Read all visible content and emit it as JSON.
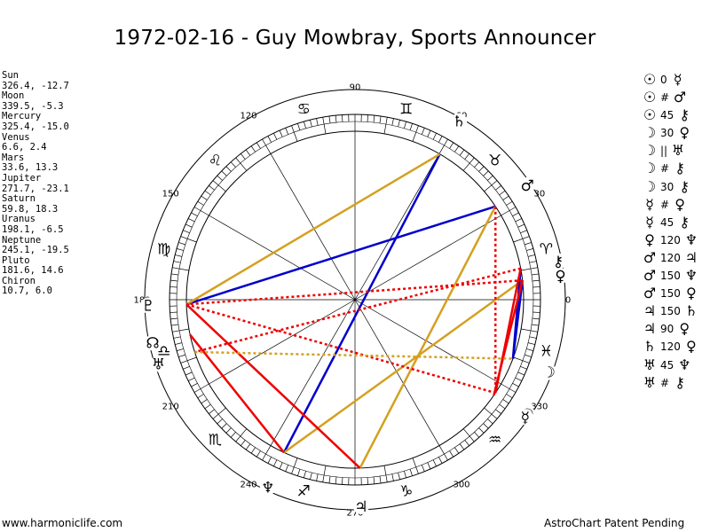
{
  "title": "1972-02-16 - Guy Mowbray, Sports Announcer",
  "planets": [
    {
      "name": "Sun",
      "coords": "326.4, -12.7"
    },
    {
      "name": "Moon",
      "coords": "339.5, -5.3"
    },
    {
      "name": "Mercury",
      "coords": "325.4, -15.0"
    },
    {
      "name": "Venus",
      "coords": "6.6, 2.4"
    },
    {
      "name": "Mars",
      "coords": "33.6, 13.3"
    },
    {
      "name": "Jupiter",
      "coords": "271.7, -23.1"
    },
    {
      "name": "Saturn",
      "coords": "59.8, 18.3"
    },
    {
      "name": "Uranus",
      "coords": "198.1, -6.5"
    },
    {
      "name": "Neptune",
      "coords": "245.1, -19.5"
    },
    {
      "name": "Pluto",
      "coords": "181.6, 14.6"
    },
    {
      "name": "Chiron",
      "coords": "10.7, 6.0"
    }
  ],
  "aspects": [
    {
      "p1": "☉",
      "orb": "0",
      "p2": "☿"
    },
    {
      "p1": "☉",
      "orb": "#",
      "p2": "♂"
    },
    {
      "p1": "☉",
      "orb": "45",
      "p2": "⚷"
    },
    {
      "p1": "☽",
      "orb": "30",
      "p2": "♀"
    },
    {
      "p1": "☽",
      "orb": "||",
      "p2": "♅"
    },
    {
      "p1": "☽",
      "orb": "#",
      "p2": "⚷"
    },
    {
      "p1": "☽",
      "orb": "30",
      "p2": "⚷"
    },
    {
      "p1": "☿",
      "orb": "#",
      "p2": "♀"
    },
    {
      "p1": "☿",
      "orb": "45",
      "p2": "⚷"
    },
    {
      "p1": "♀",
      "orb": "120",
      "p2": "♆"
    },
    {
      "p1": "♂",
      "orb": "120",
      "p2": "♃"
    },
    {
      "p1": "♂",
      "orb": "150",
      "p2": "♆"
    },
    {
      "p1": "♂",
      "orb": "150",
      "p2": "♀"
    },
    {
      "p1": "♃",
      "orb": "150",
      "p2": "♄"
    },
    {
      "p1": "♃",
      "orb": "90",
      "p2": "♀"
    },
    {
      "p1": "♄",
      "orb": "120",
      "p2": "♀"
    },
    {
      "p1": "♅",
      "orb": "45",
      "p2": "♆"
    },
    {
      "p1": "♅",
      "orb": "#",
      "p2": "⚷"
    }
  ],
  "degree_labels": [
    "0",
    "30",
    "60",
    "90",
    "120",
    "150",
    "180",
    "210",
    "240",
    "270",
    "300",
    "330"
  ],
  "zodiac_signs": [
    {
      "symbol": "♈",
      "lon": 15
    },
    {
      "symbol": "♉",
      "lon": 45
    },
    {
      "symbol": "♊",
      "lon": 75
    },
    {
      "symbol": "♋",
      "lon": 105
    },
    {
      "symbol": "♌",
      "lon": 135
    },
    {
      "symbol": "♍",
      "lon": 165
    },
    {
      "symbol": "♎",
      "lon": 195
    },
    {
      "symbol": "♏",
      "lon": 225
    },
    {
      "symbol": "♐",
      "lon": 255
    },
    {
      "symbol": "♑",
      "lon": 285
    },
    {
      "symbol": "♒",
      "lon": 315
    },
    {
      "symbol": "♓",
      "lon": 345
    }
  ],
  "planet_glyphs": [
    {
      "symbol": "☉",
      "lon": 326.4
    },
    {
      "symbol": "☽",
      "lon": 339.5
    },
    {
      "symbol": "☿",
      "lon": 325.4
    },
    {
      "symbol": "♀",
      "lon": 6.6
    },
    {
      "symbol": "♂",
      "lon": 33.6
    },
    {
      "symbol": "♃",
      "lon": 271.7
    },
    {
      "symbol": "♄",
      "lon": 59.8
    },
    {
      "symbol": "♅",
      "lon": 198.1
    },
    {
      "symbol": "♆",
      "lon": 245.1
    },
    {
      "symbol": "♇",
      "lon": 181.6
    },
    {
      "symbol": "⚷",
      "lon": 10.7
    },
    {
      "symbol": "☊",
      "lon": 192.0
    }
  ],
  "aspect_lines": [
    {
      "from": 33.6,
      "to": 181.6,
      "color": "#0000cc",
      "style": "solid"
    },
    {
      "from": 59.8,
      "to": 245.1,
      "color": "#0000cc",
      "style": "solid"
    },
    {
      "from": 59.8,
      "to": 181.6,
      "color": "#d4a020",
      "style": "solid"
    },
    {
      "from": 33.6,
      "to": 271.7,
      "color": "#d4a020",
      "style": "solid"
    },
    {
      "from": 6.6,
      "to": 245.1,
      "color": "#d4a020",
      "style": "solid"
    },
    {
      "from": 6.6,
      "to": 339.5,
      "color": "#0000cc",
      "style": "solid"
    },
    {
      "from": 10.7,
      "to": 339.5,
      "color": "#0000cc",
      "style": "solid"
    },
    {
      "from": 181.6,
      "to": 271.7,
      "color": "#ee0000",
      "style": "solid"
    },
    {
      "from": 192.0,
      "to": 245.1,
      "color": "#ee0000",
      "style": "solid"
    },
    {
      "from": 10.7,
      "to": 326.4,
      "color": "#ee0000",
      "style": "solid"
    },
    {
      "from": 6.6,
      "to": 325.4,
      "color": "#ee0000",
      "style": "solid"
    },
    {
      "from": 33.6,
      "to": 326.4,
      "color": "#ee0000",
      "style": "dotted"
    },
    {
      "from": 10.7,
      "to": 198.1,
      "color": "#ee0000",
      "style": "dotted"
    },
    {
      "from": 6.6,
      "to": 181.6,
      "color": "#ee0000",
      "style": "dotted"
    },
    {
      "from": 181.6,
      "to": 326.4,
      "color": "#ee0000",
      "style": "dotted"
    },
    {
      "from": 198.1,
      "to": 339.5,
      "color": "#d4a020",
      "style": "dotted"
    }
  ],
  "footer_left": "www.harmoniclife.com",
  "footer_right": "AstroChart Patent Pending"
}
